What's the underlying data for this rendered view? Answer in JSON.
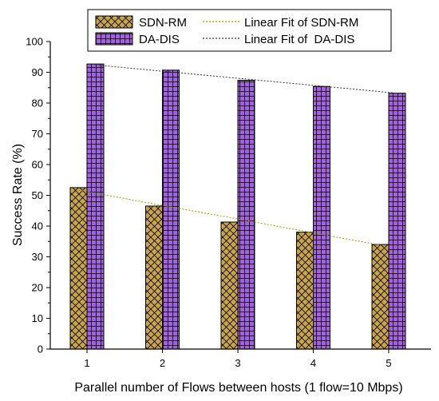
{
  "chart_data": {
    "type": "bar",
    "xlabel": "Parallel number of Flows between hosts (1 flow=10 Mbps)",
    "ylabel": "Success Rate (%)",
    "categories": [
      "1",
      "2",
      "3",
      "4",
      "5"
    ],
    "ylim": [
      0,
      100
    ],
    "yticks": [
      "0",
      "10",
      "20",
      "30",
      "40",
      "50",
      "60",
      "70",
      "80",
      "90",
      "100"
    ],
    "series": [
      {
        "name": "SDN-RM",
        "values": [
          52.5,
          46.5,
          41.3,
          38.0,
          34.0
        ],
        "fill": "#c9a546",
        "pattern": "crosshatch-diagonal",
        "fit_name": "Linear Fit of SDN-RM",
        "fit_color": "#9aa000",
        "fit_line": [
          51.7,
          47.2,
          42.8,
          38.3,
          33.8
        ]
      },
      {
        "name": "DA-DIS",
        "values": [
          92.7,
          90.7,
          87.4,
          85.4,
          83.2
        ],
        "fill": "#a45ee8",
        "pattern": "grid",
        "fit_name": "Linear Fit of  DA-DIS",
        "fit_color": "#333333",
        "fit_line": [
          92.4,
          90.1,
          87.8,
          85.5,
          83.2
        ]
      }
    ],
    "legend": {
      "position": "top",
      "entries": [
        {
          "label": "SDN-RM",
          "kind": "bar",
          "series": 0
        },
        {
          "label": "Linear Fit of SDN-RM",
          "kind": "fit",
          "series": 0
        },
        {
          "label": "DA-DIS",
          "kind": "bar",
          "series": 1
        },
        {
          "label": "Linear Fit of  DA-DIS",
          "kind": "fit",
          "series": 1
        }
      ]
    },
    "grid": false
  }
}
